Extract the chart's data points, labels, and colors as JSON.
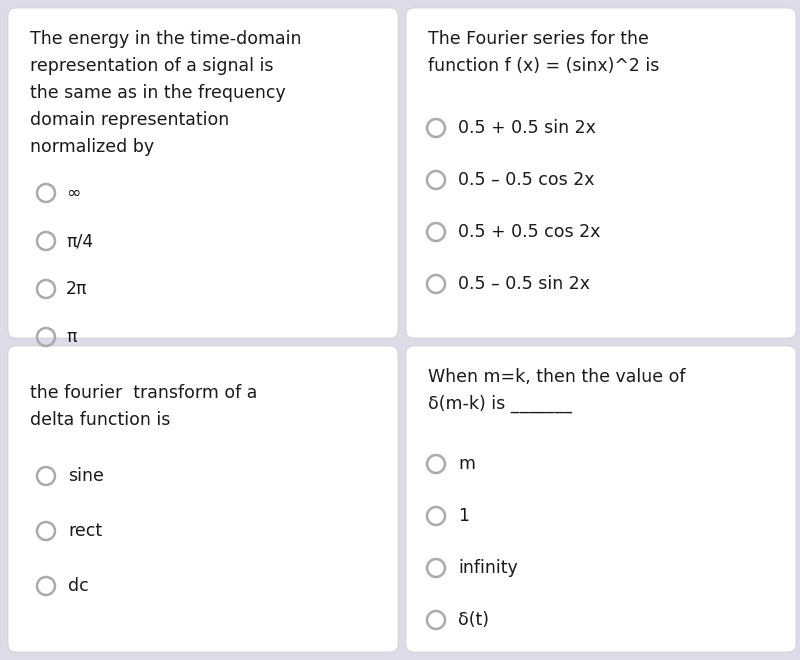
{
  "bg_color": "#dcdce8",
  "card_color": "#ffffff",
  "text_color": "#1a1a1a",
  "q1_title": "The energy in the time-domain\nrepresentation of a signal is\nthe same as in the frequency\ndomain representation\nnormalized by",
  "q1_options": [
    "∞",
    "π/4",
    "2π",
    "π"
  ],
  "q2_title": "The Fourier series for the\nfunction f (x) = (sinx)^2 is",
  "q2_options": [
    "0.5 + 0.5 sin 2x",
    "0.5 – 0.5 cos 2x",
    "0.5 + 0.5 cos 2x",
    "0.5 – 0.5 sin 2x"
  ],
  "q3_title": "the fourier  transform of a\ndelta function is",
  "q3_options": [
    "sine",
    "rect",
    "dc"
  ],
  "q4_title": "When m=k, then the value of\nδ(m-k) is _______",
  "q4_options": [
    "m",
    "1",
    "infinity",
    "δ(t)"
  ],
  "title_fontsize": 12.5,
  "option_fontsize": 12.5
}
